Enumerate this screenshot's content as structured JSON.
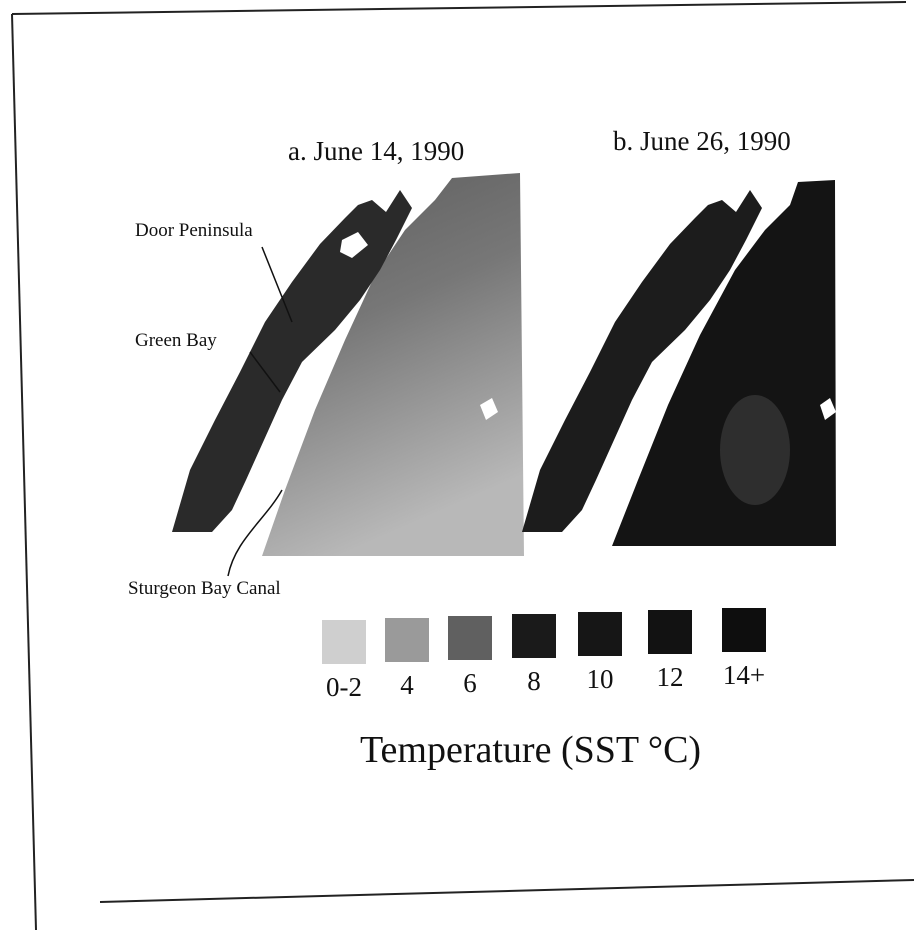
{
  "panels": [
    {
      "title": "a. June 14, 1990"
    },
    {
      "title": "b. June 26, 1990"
    }
  ],
  "labels": {
    "door_peninsula": "Door Peninsula",
    "green_bay": "Green Bay",
    "sturgeon_bay_canal": "Sturgeon Bay Canal"
  },
  "legend": {
    "items": [
      "0-2",
      "4",
      "6",
      "8",
      "10",
      "12",
      "14+"
    ],
    "title": "Temperature (SST °C)"
  }
}
